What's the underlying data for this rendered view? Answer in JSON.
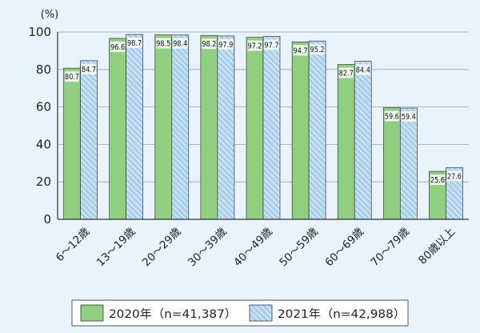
{
  "chart_data": {
    "type": "bar",
    "unit_label": "(%)",
    "categories": [
      "6～12歳",
      "13～19歳",
      "20～29歳",
      "30～39歳",
      "40～49歳",
      "50～59歳",
      "60～69歳",
      "70～79歳",
      "80歳以上"
    ],
    "series": [
      {
        "name": "2020年（n=41,387）",
        "color": "#8fcf7f",
        "style": "solid",
        "values": [
          80.7,
          96.6,
          98.5,
          98.2,
          97.2,
          94.7,
          82.7,
          59.6,
          25.6
        ],
        "labels": [
          "80.7",
          "96.6",
          "98.5",
          "98.2",
          "97.2",
          "94.7",
          "82.7",
          "59.6",
          "25.6"
        ]
      },
      {
        "name": "2021年（n=42,988）",
        "color": "#9cc7ee",
        "style": "hatched",
        "values": [
          84.7,
          98.7,
          98.4,
          97.9,
          97.7,
          95.2,
          84.4,
          59.4,
          27.6
        ],
        "labels": [
          "84.7",
          "98.7",
          "98.4",
          "97.9",
          "97.7",
          "95.2",
          "84.4",
          "59.4",
          "27.6"
        ]
      }
    ],
    "ylim": [
      0,
      100
    ],
    "yticks": [
      0,
      20,
      40,
      60,
      80,
      100
    ],
    "grid": true,
    "legend_position": "bottom-center"
  }
}
